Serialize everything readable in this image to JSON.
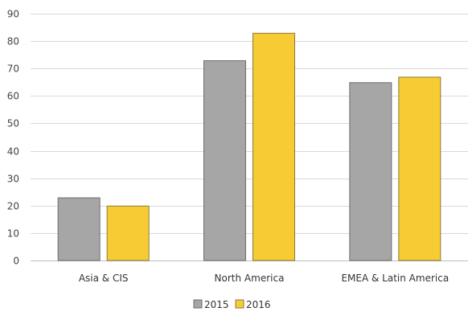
{
  "chart_data": {
    "type": "bar",
    "title": "",
    "xlabel": "",
    "ylabel": "",
    "categories": [
      "Asia & CIS",
      "North America",
      "EMEA & Latin America"
    ],
    "series": [
      {
        "name": "2015",
        "values": [
          23,
          73,
          65
        ],
        "color": "#a6a6a6",
        "stroke": "#6e6e6e"
      },
      {
        "name": "2016",
        "values": [
          20,
          83,
          67
        ],
        "color": "#f7cb33",
        "stroke": "#8a7a3a"
      }
    ],
    "ylim": [
      0,
      90
    ],
    "yticks": [
      0,
      10,
      20,
      30,
      40,
      50,
      60,
      70,
      80,
      90
    ],
    "grid": true,
    "legend_position": "bottom-center"
  }
}
